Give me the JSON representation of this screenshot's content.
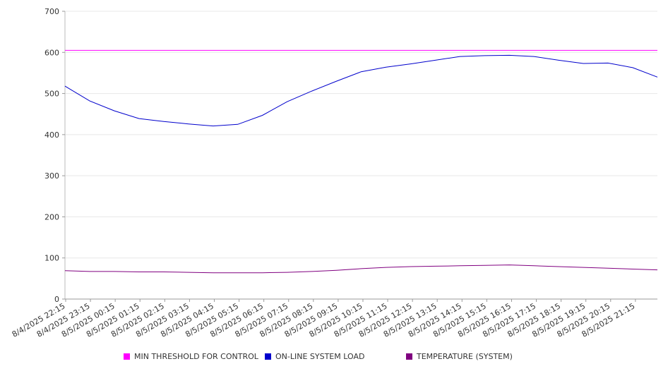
{
  "chart_data": {
    "type": "line",
    "title": "",
    "xlabel": "",
    "ylabel": "",
    "ylim": [
      0,
      700
    ],
    "yticks": [
      0,
      100,
      200,
      300,
      400,
      500,
      600,
      700
    ],
    "grid": true,
    "legend_position": "bottom",
    "x_labels": [
      "8/4/2025 22:15",
      "8/4/2025 23:15",
      "8/5/2025 00:15",
      "8/5/2025 01:15",
      "8/5/2025 02:15",
      "8/5/2025 03:15",
      "8/5/2025 04:15",
      "8/5/2025 05:15",
      "8/5/2025 06:15",
      "8/5/2025 07:15",
      "8/5/2025 08:15",
      "8/5/2025 09:15",
      "8/5/2025 10:15",
      "8/5/2025 11:15",
      "8/5/2025 12:15",
      "8/5/2025 13:15",
      "8/5/2025 14:15",
      "8/5/2025 15:15",
      "8/5/2025 16:15",
      "8/5/2025 17:15",
      "8/5/2025 18:15",
      "8/5/2025 19:15",
      "8/5/2025 20:15",
      "8/5/2025 21:15"
    ],
    "x_end": "8/5/2025 22:00",
    "series": [
      {
        "name": "MIN THRESHOLD FOR CONTROL",
        "color": "#ff00ff",
        "values": [
          605,
          605,
          605,
          605,
          605,
          605,
          605,
          605,
          605,
          605,
          605,
          605,
          605,
          605,
          605,
          605,
          605,
          605,
          605,
          605,
          605,
          605,
          605,
          605,
          605
        ]
      },
      {
        "name": "ON-LINE SYSTEM LOAD",
        "color": "#0000cc",
        "values": [
          518,
          482,
          458,
          439,
          432,
          426,
          421,
          425,
          447,
          480,
          506,
          530,
          553,
          564,
          572,
          581,
          590,
          592,
          593,
          590,
          581,
          573,
          574,
          563,
          540
        ]
      },
      {
        "name": "TEMPERATURE (SYSTEM)",
        "color": "#800080",
        "values": [
          69,
          67,
          67,
          66,
          66,
          65,
          64,
          64,
          64,
          65,
          67,
          70,
          74,
          77,
          79,
          80,
          81,
          82,
          83,
          81,
          79,
          77,
          75,
          73,
          71
        ]
      }
    ]
  }
}
